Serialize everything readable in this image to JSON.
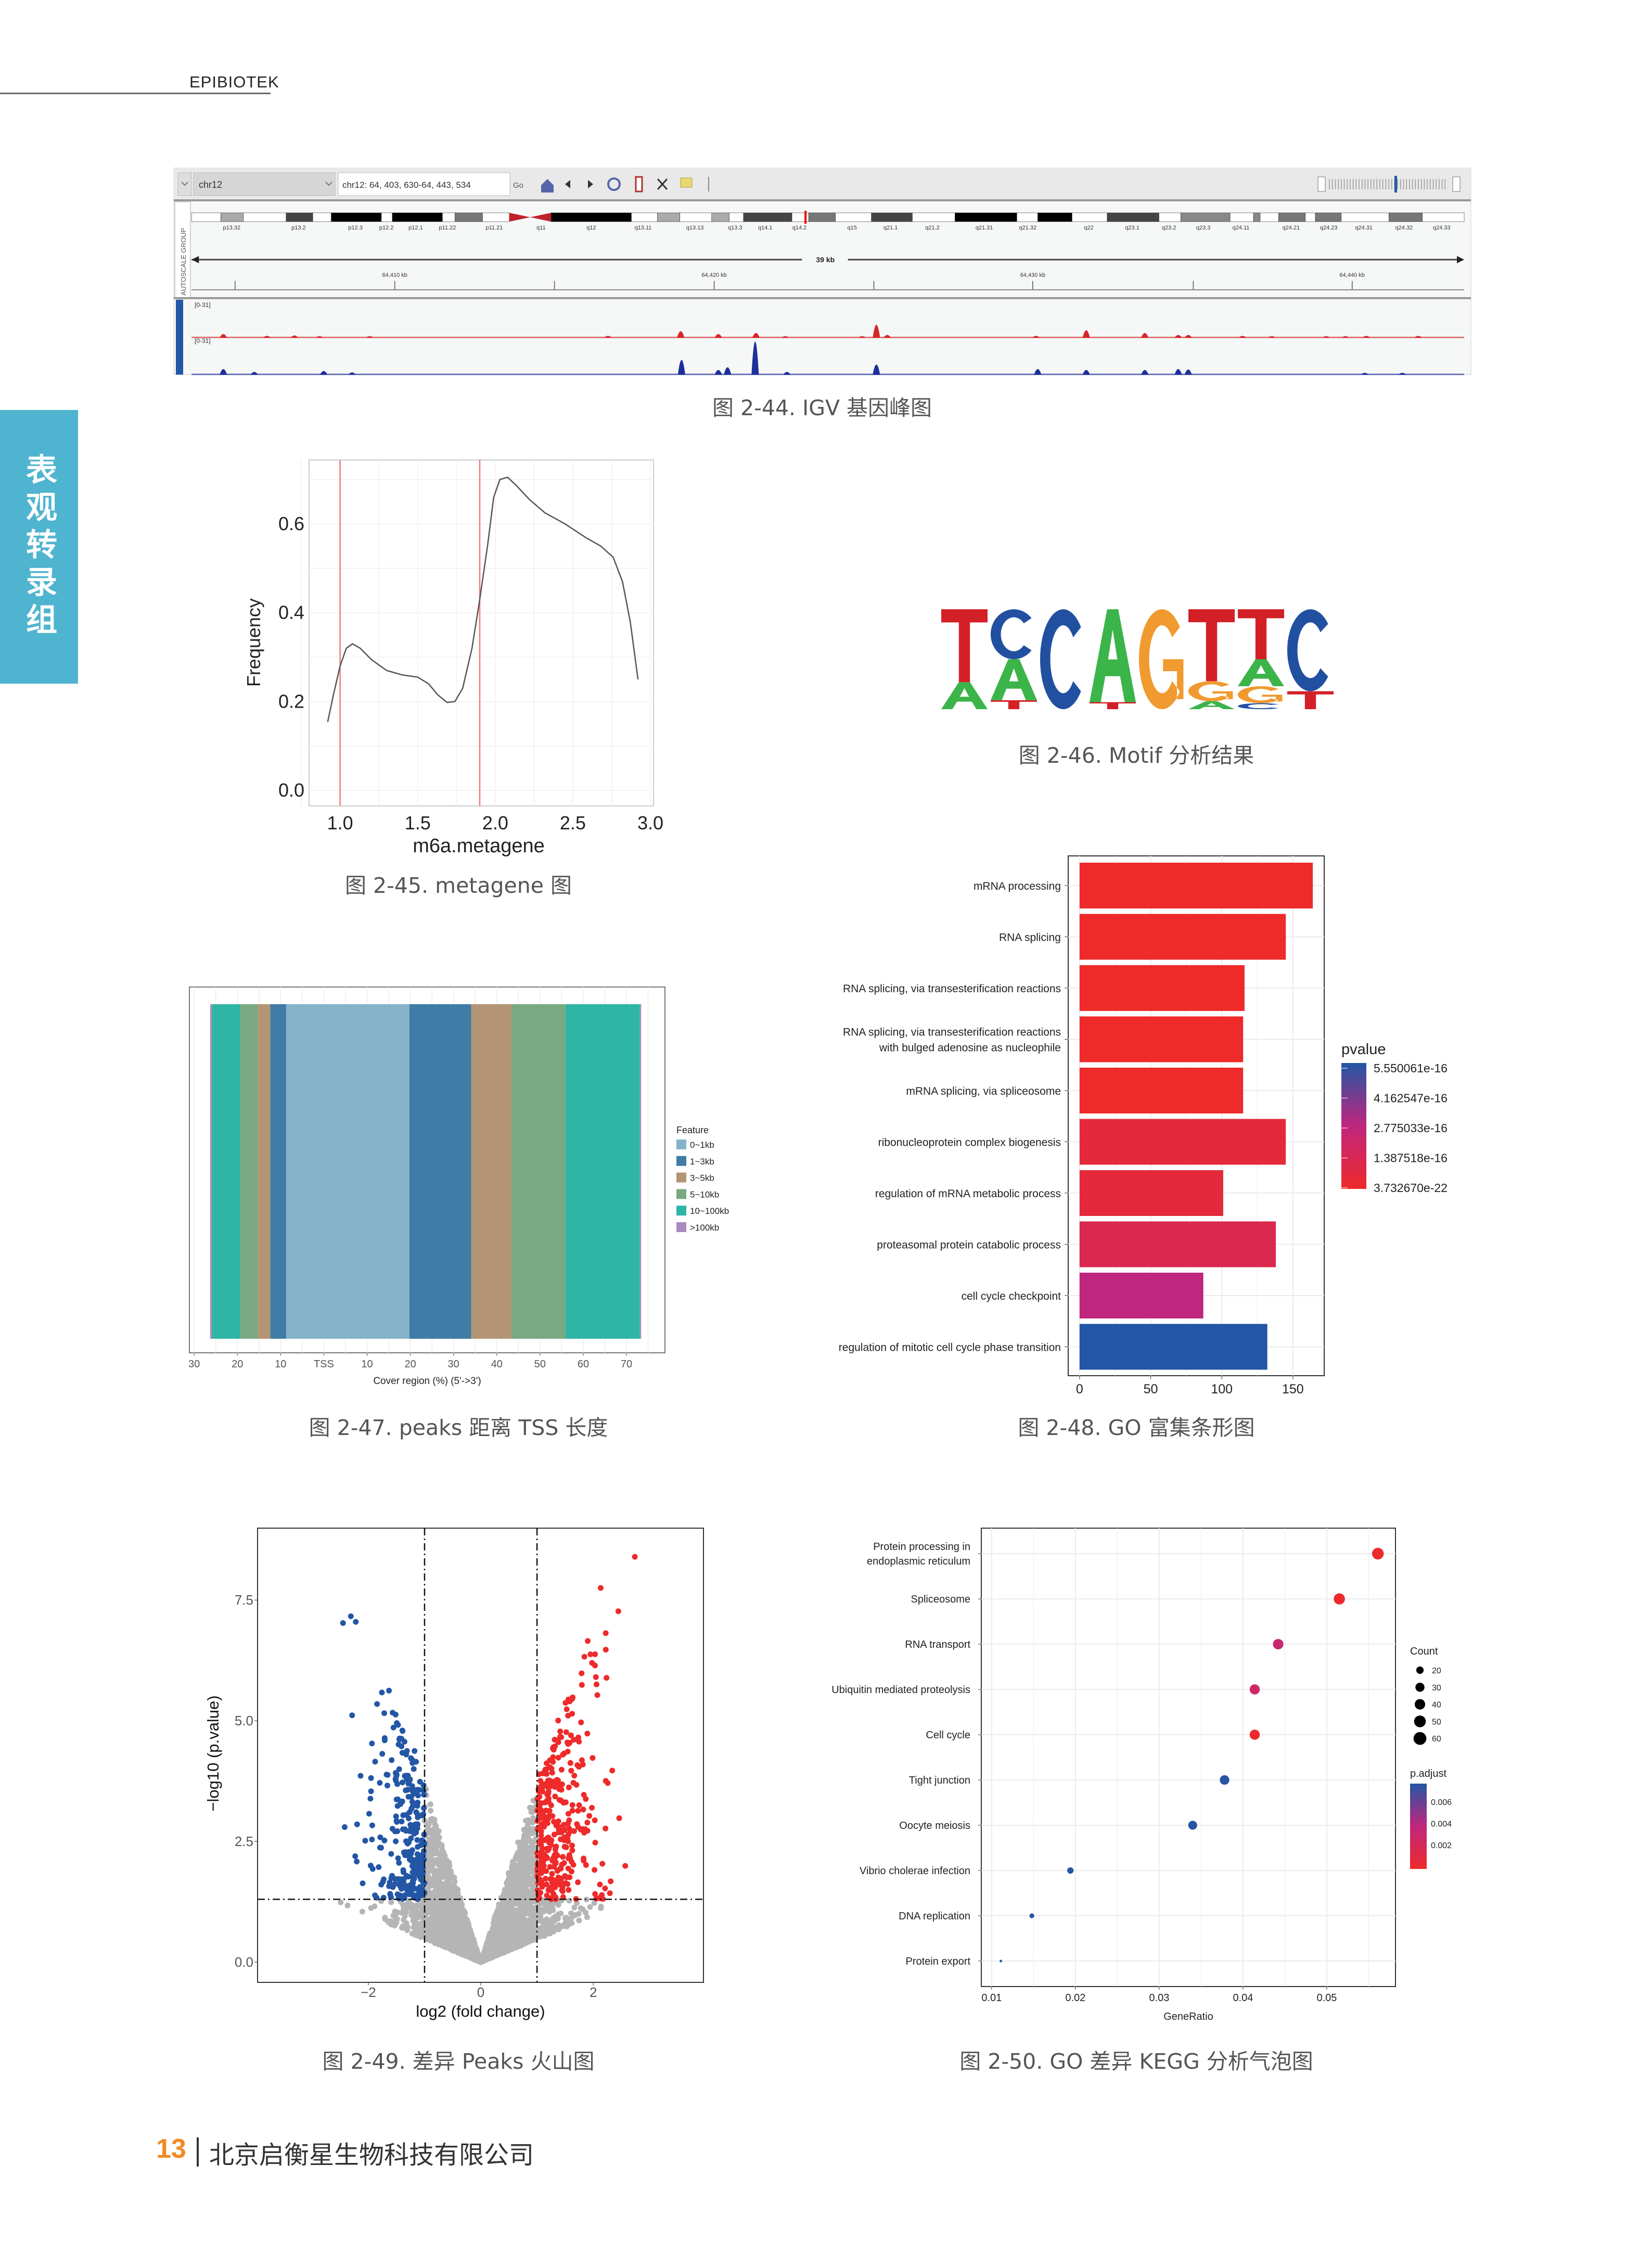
{
  "header": {
    "brand": "EPIBIOTEK"
  },
  "side_tab": {
    "label": "表观转录组"
  },
  "captions": {
    "igv": "图 2-44. IGV 基因峰图",
    "metagene": "图 2-45. metagene 图",
    "motif": "图 2-46. Motif 分析结果",
    "tss": "图 2-47. peaks 距离 TSS 长度",
    "go": "图 2-48. GO 富集条形图",
    "volcano": "图 2-49. 差异 Peaks 火山图",
    "kegg": "图 2-50. GO 差异 KEGG 分析气泡图"
  },
  "igv": {
    "chromosome": "chr12",
    "locus": "chr12: 64, 403, 630-64, 443, 534",
    "go_label": "Go",
    "side_label": "AUTOSCALE GROUP",
    "region_size": "39 kb",
    "ruler": [
      "64,410 kb",
      "64,420 kb",
      "64,430 kb",
      "64,440 kb"
    ],
    "cytobands": [
      "p13.32",
      "p13.2",
      "p12.3",
      "p12.2",
      "p12.1",
      "p11.22",
      "p11.21",
      "q11",
      "q12",
      "q13.11",
      "q13.13",
      "q13.3",
      "q14.1",
      "q14.2",
      "q15",
      "q21.1",
      "q21.2",
      "q21.31",
      "q21.32",
      "q22",
      "q23.1",
      "q23.2",
      "q23.3",
      "q24.11",
      "q24.21",
      "q24.23",
      "q24.31",
      "q24.32",
      "q24.33"
    ],
    "tracks": [
      {
        "range": "[0-31]",
        "color": "#d62728"
      },
      {
        "range": "[0-31]",
        "color": "#1f2f9a"
      }
    ]
  },
  "chart_data": [
    {
      "id": "metagene",
      "type": "line",
      "xlabel": "m6a.metagene",
      "ylabel": "Frequency",
      "xlim": [
        0.8,
        3.02
      ],
      "ylim": [
        -0.035,
        0.744
      ],
      "xticks": [
        1.0,
        1.5,
        2.0,
        2.5,
        3.0
      ],
      "xtick_labels": [
        "1.0",
        "1.5",
        "2.0",
        "2.5",
        "3.0"
      ],
      "yticks": [
        0.0,
        0.2,
        0.4,
        0.6
      ],
      "ytick_labels": [
        "0.0",
        "0.2",
        "0.4",
        "0.6"
      ],
      "vlines": [
        1.0,
        1.9
      ],
      "x": [
        0.92,
        0.96,
        1.0,
        1.04,
        1.08,
        1.13,
        1.2,
        1.3,
        1.4,
        1.5,
        1.57,
        1.63,
        1.69,
        1.74,
        1.79,
        1.85,
        1.9,
        1.95,
        1.99,
        2.03,
        2.08,
        2.14,
        2.22,
        2.32,
        2.45,
        2.58,
        2.68,
        2.76,
        2.82,
        2.87,
        2.92
      ],
      "y": [
        0.154,
        0.22,
        0.28,
        0.32,
        0.33,
        0.32,
        0.295,
        0.27,
        0.26,
        0.255,
        0.24,
        0.215,
        0.198,
        0.2,
        0.23,
        0.32,
        0.43,
        0.55,
        0.66,
        0.7,
        0.705,
        0.685,
        0.655,
        0.625,
        0.6,
        0.57,
        0.55,
        0.525,
        0.47,
        0.38,
        0.25
      ]
    },
    {
      "id": "motif",
      "type": "sequence-logo",
      "consensus": "TCCAGTTC",
      "colors": {
        "A": "#3bb44a",
        "C": "#2150a0",
        "G": "#f09a2f",
        "T": "#d32027"
      },
      "positions": [
        [
          {
            "base": "T",
            "p": 0.73
          },
          {
            "base": "A",
            "p": 0.27
          }
        ],
        [
          {
            "base": "C",
            "p": 0.5
          },
          {
            "base": "A",
            "p": 0.41
          },
          {
            "base": "T",
            "p": 0.09
          }
        ],
        [
          {
            "base": "C",
            "p": 1.0
          }
        ],
        [
          {
            "base": "A",
            "p": 0.93
          },
          {
            "base": "T",
            "p": 0.07
          }
        ],
        [
          {
            "base": "G",
            "p": 1.0
          }
        ],
        [
          {
            "base": "T",
            "p": 0.72
          },
          {
            "base": "G",
            "p": 0.2
          },
          {
            "base": "A",
            "p": 0.08
          }
        ],
        [
          {
            "base": "T",
            "p": 0.5
          },
          {
            "base": "A",
            "p": 0.27
          },
          {
            "base": "G",
            "p": 0.17
          },
          {
            "base": "C",
            "p": 0.06
          }
        ],
        [
          {
            "base": "C",
            "p": 0.82
          },
          {
            "base": "T",
            "p": 0.18
          }
        ]
      ]
    },
    {
      "id": "tss",
      "type": "bar",
      "xlabel": "Cover region (%) (5'->3')",
      "xlim": [
        -31.1,
        78.9
      ],
      "xticks": [
        -30,
        -20,
        -10,
        0,
        10,
        20,
        30,
        40,
        50,
        60,
        70
      ],
      "xtick_labels": [
        "30",
        "20",
        "10",
        "TSS",
        "10",
        "20",
        "30",
        "40",
        "50",
        "60",
        "70"
      ],
      "legend_title": "Feature",
      "legend": [
        {
          "name": "0~1kb",
          "color": "#85b3c9"
        },
        {
          "name": "1~3kb",
          "color": "#3f7ca6"
        },
        {
          "name": "3~5kb",
          "color": "#b39474"
        },
        {
          "name": "5~10kb",
          "color": "#7aa981"
        },
        {
          "name": "10~100kb",
          "color": "#2fb5a6"
        },
        {
          "name": ">100kb",
          "color": "#a98bbf"
        }
      ],
      "segments": [
        {
          "feature": 5,
          "start": -26.3,
          "end": -25.9
        },
        {
          "feature": 4,
          "start": -25.9,
          "end": -19.3
        },
        {
          "feature": 3,
          "start": -19.3,
          "end": -15.3
        },
        {
          "feature": 2,
          "start": -15.3,
          "end": -12.4
        },
        {
          "feature": 1,
          "start": -12.4,
          "end": -8.7
        },
        {
          "feature": 0,
          "start": -8.7,
          "end": 19.8
        },
        {
          "feature": 1,
          "start": 19.8,
          "end": 34.1
        },
        {
          "feature": 2,
          "start": 34.1,
          "end": 43.4
        },
        {
          "feature": 3,
          "start": 43.4,
          "end": 55.9
        },
        {
          "feature": 4,
          "start": 55.9,
          "end": 73.1
        },
        {
          "feature": 5,
          "start": 73.1,
          "end": 73.4
        }
      ]
    },
    {
      "id": "go",
      "type": "bar",
      "orientation": "horizontal",
      "xlim": [
        -8,
        172
      ],
      "xticks": [
        0,
        50,
        100,
        150
      ],
      "xtick_labels": [
        "0",
        "50",
        "100",
        "150"
      ],
      "categories": [
        [
          "mRNA processing"
        ],
        [
          "RNA splicing"
        ],
        [
          "RNA splicing, via transesterification reactions"
        ],
        [
          "RNA splicing, via transesterification reactions",
          "with bulged adenosine as nucleophile"
        ],
        [
          "mRNA splicing, via spliceosome"
        ],
        [
          "ribonucleoprotein complex biogenesis"
        ],
        [
          "regulation of mRNA metabolic process"
        ],
        [
          "proteasomal protein catabolic process"
        ],
        [
          "cell cycle checkpoint"
        ],
        [
          "regulation of mitotic cell cycle phase transition"
        ]
      ],
      "values": [
        164,
        145,
        116,
        115,
        115,
        145,
        101,
        138,
        87,
        132
      ],
      "pvalue": [
        3.7e-22,
        1e-20,
        1e-20,
        1e-20,
        1e-20,
        6e-17,
        6e-17,
        1.2e-16,
        2.8e-16,
        5.55e-16
      ],
      "legend_title": "pvalue",
      "legend_labels": [
        "5.550061e-16",
        "4.162547e-16",
        "2.775033e-16",
        "1.387518e-16",
        "3.732670e-22"
      ],
      "color_low": "#ee2a2a",
      "color_mid": "#c0267e",
      "color_high": "#2356a5"
    },
    {
      "id": "volcano",
      "type": "scatter",
      "xlabel": "log2 (fold change)",
      "ylabel": "−log10 (p.value)",
      "xlim": [
        -3.97,
        3.96
      ],
      "ylim": [
        -0.42,
        8.99
      ],
      "xticks": [
        -2,
        0,
        2
      ],
      "xtick_labels": [
        "−2",
        "0",
        "2"
      ],
      "yticks": [
        0,
        2.5,
        5,
        7.5
      ],
      "ytick_labels": [
        "0.0",
        "2.5",
        "5.0",
        "7.5"
      ],
      "fc_threshold": 1,
      "p_threshold": 1.3,
      "colors": {
        "down": "#2356a5",
        "up": "#ee2a2a",
        "ns": "#b5b5b5"
      }
    },
    {
      "id": "kegg",
      "type": "scatter",
      "xlabel": "GeneRatio",
      "xlim": [
        0.00877,
        0.0582
      ],
      "xticks": [
        0.01,
        0.02,
        0.03,
        0.04,
        0.05
      ],
      "xtick_labels": [
        "0.01",
        "0.02",
        "0.03",
        "0.04",
        "0.05"
      ],
      "categories": [
        [
          "Protein processing in",
          "endoplasmic reticulum"
        ],
        [
          "Spliceosome"
        ],
        [
          "RNA transport"
        ],
        [
          "Ubiquitin mediated proteolysis"
        ],
        [
          "Cell cycle"
        ],
        [
          "Tight junction"
        ],
        [
          "Oocyte meiosis"
        ],
        [
          "Vibrio cholerae infection"
        ],
        [
          "DNA replication"
        ],
        [
          "Protein export"
        ]
      ],
      "gene_ratio": [
        0.0561,
        0.0515,
        0.0442,
        0.0414,
        0.0414,
        0.0378,
        0.034,
        0.0194,
        0.0148,
        0.0111
      ],
      "count": [
        60,
        55,
        48,
        45,
        45,
        40,
        35,
        18,
        10,
        3
      ],
      "p_adjust": [
        0.0001,
        0.0001,
        0.0032,
        0.0027,
        0.0002,
        0.0076,
        0.0076,
        0.0076,
        0.0076,
        0.0076
      ],
      "size_legend_title": "Count",
      "size_legend": [
        20,
        30,
        40,
        50,
        60
      ],
      "color_legend_title": "p.adjust",
      "color_legend_labels": [
        "0.006",
        "0.004",
        "0.002"
      ],
      "color_range": [
        0,
        0.0077
      ],
      "color_low": "#ee2a2a",
      "color_mid": "#c0267e",
      "color_high": "#2356a5"
    }
  ],
  "footer": {
    "page": "13",
    "company": "北京启衡星生物科技有限公司"
  }
}
